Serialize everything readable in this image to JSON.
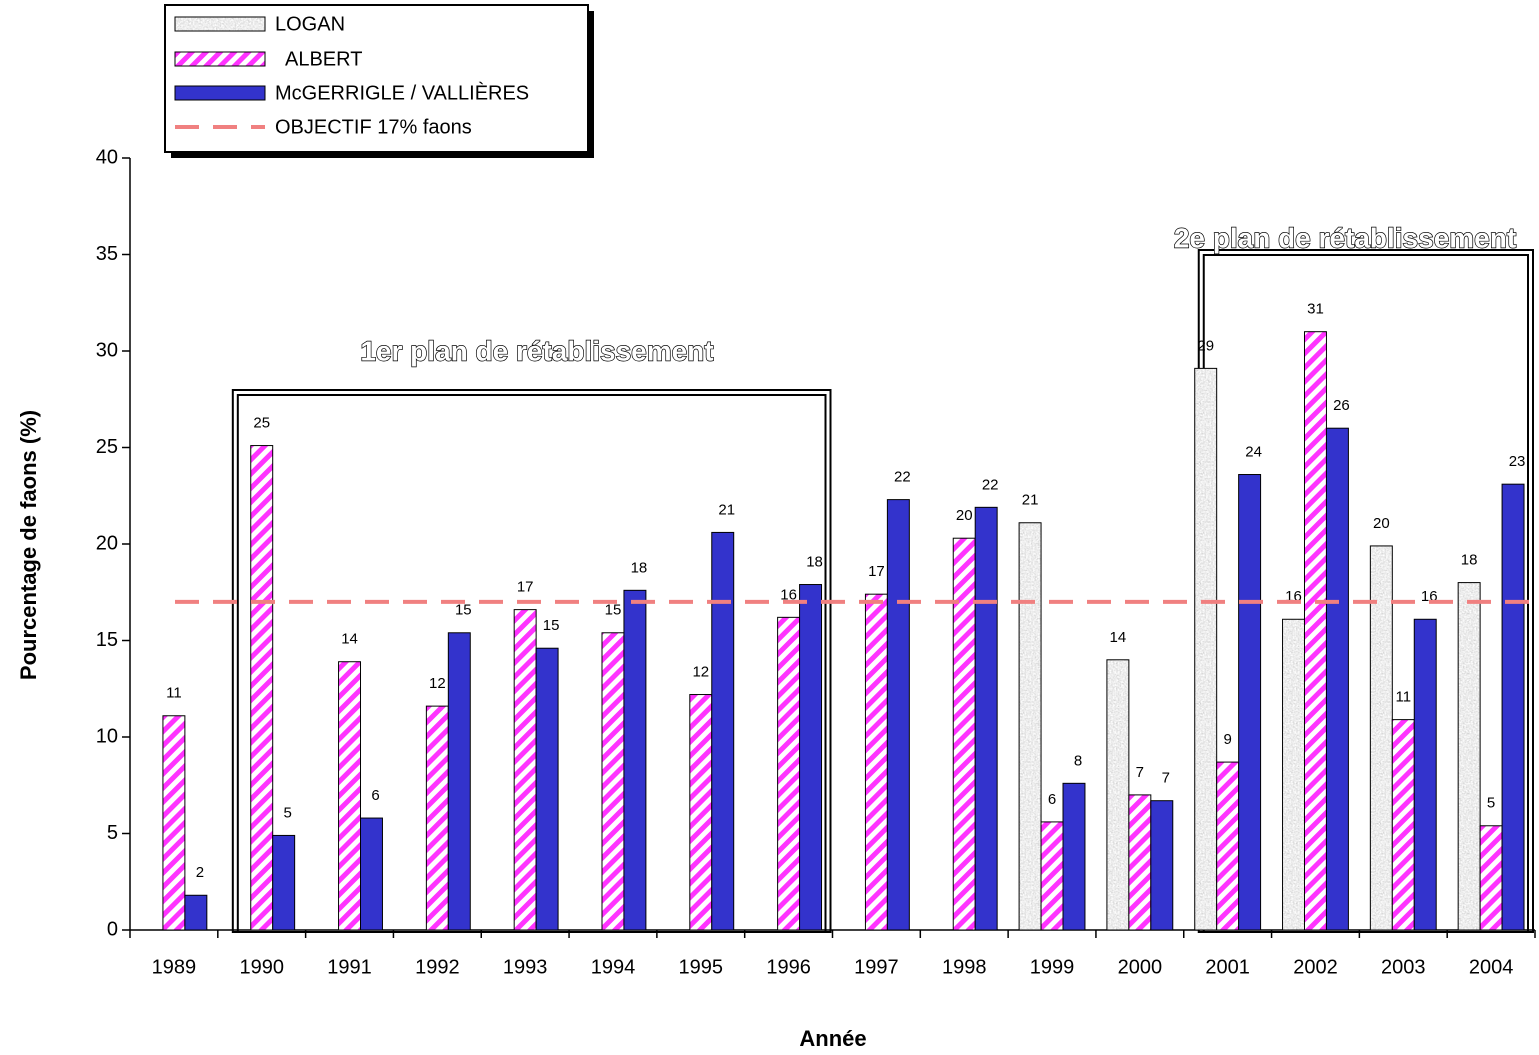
{
  "chart_data": {
    "type": "bar",
    "x_label": "Année",
    "y_label": "Pourcentage de faons (%)",
    "categories": [
      "1989",
      "1990",
      "1991",
      "1992",
      "1993",
      "1994",
      "1995",
      "1996",
      "1997",
      "1998",
      "1999",
      "2000",
      "2001",
      "2002",
      "2003",
      "2004"
    ],
    "series": [
      {
        "name": "LOGAN",
        "color": "#a8a8a8",
        "values": [
          null,
          null,
          null,
          null,
          null,
          null,
          null,
          null,
          null,
          null,
          21.1,
          14.0,
          29.1,
          16.1,
          19.9,
          18.0
        ],
        "value_labels": [
          null,
          null,
          null,
          null,
          null,
          null,
          null,
          null,
          null,
          null,
          "21",
          "14",
          "29",
          "16",
          "20",
          "18"
        ]
      },
      {
        "name": "ALBERT",
        "color": "#ff33ff",
        "values": [
          11.1,
          25.1,
          13.9,
          11.6,
          16.6,
          15.4,
          12.2,
          16.2,
          17.4,
          20.3,
          5.6,
          7.0,
          8.7,
          31.0,
          10.9,
          5.4
        ],
        "value_labels": [
          "11",
          "25",
          "14",
          "12",
          "17",
          "15",
          "12",
          "16",
          "17",
          "20",
          "6",
          "7",
          "9",
          "31",
          "11",
          "5"
        ]
      },
      {
        "name": "McGERRIGLE / VALLIÈRES",
        "color": "#3333cc",
        "values": [
          1.8,
          4.9,
          5.8,
          15.4,
          14.6,
          17.6,
          20.6,
          17.9,
          22.3,
          21.9,
          7.6,
          6.7,
          23.6,
          26.0,
          16.1,
          23.1
        ],
        "value_labels": [
          "2",
          "5",
          "6",
          "15",
          "15",
          "18",
          "21",
          "18",
          "22",
          "22",
          "8",
          "7",
          "24",
          "26",
          "16",
          "23"
        ]
      }
    ],
    "reference_line": {
      "value": 17,
      "label": "OBJECTIF 17% faons",
      "color": "#f08080"
    },
    "annotations": [
      "1er plan de rétablissement",
      "2e plan de rétablissement"
    ],
    "ylim": [
      0,
      40
    ],
    "yticks": [
      0,
      5,
      10,
      15,
      20,
      25,
      30,
      35,
      40
    ],
    "grid": false
  }
}
